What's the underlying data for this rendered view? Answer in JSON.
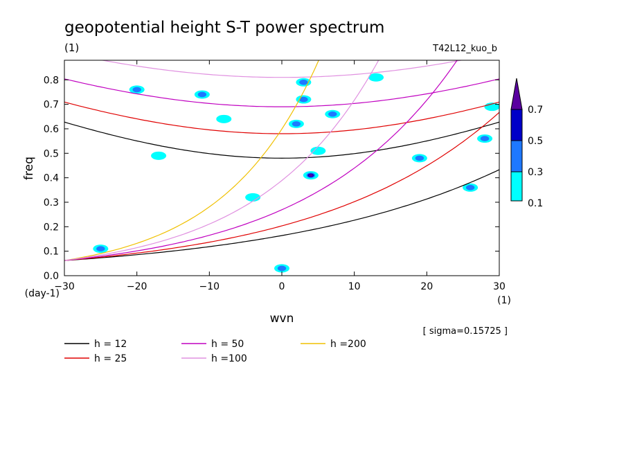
{
  "chart_data": {
    "type": "contour",
    "title": "geopotential height S-T power spectrum",
    "subtitle_left": "(1)",
    "subtitle_right": "T42L12_kuo_b",
    "xlabel": "wvn",
    "ylabel": "freq",
    "x_unit": "(1)",
    "y_unit": "(day-1)",
    "xlim": [
      -30,
      30
    ],
    "ylim": [
      0.0,
      0.88
    ],
    "xticks": [
      -30,
      -20,
      -10,
      0,
      10,
      20,
      30
    ],
    "yticks": [
      0.0,
      0.1,
      0.2,
      0.3,
      0.4,
      0.5,
      0.6,
      0.7,
      0.8
    ],
    "xtick_labels": [
      "−30",
      "−20",
      "−10",
      "0",
      "10",
      "20",
      "30"
    ],
    "ytick_labels": [
      "0.0",
      "0.1",
      "0.2",
      "0.3",
      "0.4",
      "0.5",
      "0.6",
      "0.7",
      "0.8"
    ],
    "annotation": "[ sigma=0.15725 ]",
    "colorbar": {
      "levels": [
        "0.1",
        "0.3",
        "0.5",
        "0.7"
      ],
      "colors": [
        "#00ffff",
        "#1e78ff",
        "#0000c8",
        "#5a00a0"
      ]
    },
    "dispersion_curves": [
      {
        "name": "h = 12",
        "color": "#000000",
        "min_freq": 0.48,
        "n": 2
      },
      {
        "name": "h = 25",
        "color": "#e00000",
        "min_freq": 0.58,
        "n": 2
      },
      {
        "name": "h = 50",
        "color": "#c000c0",
        "min_freq": 0.69,
        "n": 2
      },
      {
        "name": "h =100",
        "color": "#e090e0",
        "min_freq": 0.81,
        "n": 2
      },
      {
        "name": "h =200",
        "color": "#f0c000",
        "min_freq": null,
        "n": 1
      },
      {
        "name": "h = 12 (n=1)",
        "color": "#000000",
        "min_freq": null,
        "n": 1
      },
      {
        "name": "h = 25 (n=1)",
        "color": "#e00000",
        "min_freq": null,
        "n": 1
      },
      {
        "name": "h = 50 (n=1)",
        "color": "#c000c0",
        "min_freq": null,
        "n": 1
      },
      {
        "name": "h =100 (n=1)",
        "color": "#e090e0",
        "min_freq": null,
        "n": 1
      }
    ],
    "legend": [
      {
        "label": "h = 12",
        "color": "#000000"
      },
      {
        "label": "h = 25",
        "color": "#e00000"
      },
      {
        "label": "h = 50",
        "color": "#c000c0"
      },
      {
        "label": "h =100",
        "color": "#e090e0"
      },
      {
        "label": "h =200",
        "color": "#f0c000"
      }
    ],
    "power_blobs": [
      {
        "x": -25,
        "y": 0.11,
        "level": 1
      },
      {
        "x": -20,
        "y": 0.76,
        "level": 1
      },
      {
        "x": -17,
        "y": 0.49,
        "level": 0
      },
      {
        "x": -11,
        "y": 0.74,
        "level": 1
      },
      {
        "x": -8,
        "y": 0.64,
        "level": 0
      },
      {
        "x": -4,
        "y": 0.32,
        "level": 0
      },
      {
        "x": 0,
        "y": 0.03,
        "level": 1
      },
      {
        "x": 2,
        "y": 0.62,
        "level": 1
      },
      {
        "x": 3,
        "y": 0.79,
        "level": 1
      },
      {
        "x": 3,
        "y": 0.72,
        "level": 1
      },
      {
        "x": 4,
        "y": 0.41,
        "level": 3
      },
      {
        "x": 5,
        "y": 0.51,
        "level": 0
      },
      {
        "x": 7,
        "y": 0.66,
        "level": 1
      },
      {
        "x": 13,
        "y": 0.81,
        "level": 0
      },
      {
        "x": 19,
        "y": 0.48,
        "level": 1
      },
      {
        "x": 26,
        "y": 0.36,
        "level": 1
      },
      {
        "x": 28,
        "y": 0.56,
        "level": 1
      },
      {
        "x": 29,
        "y": 0.69,
        "level": 0
      }
    ]
  }
}
